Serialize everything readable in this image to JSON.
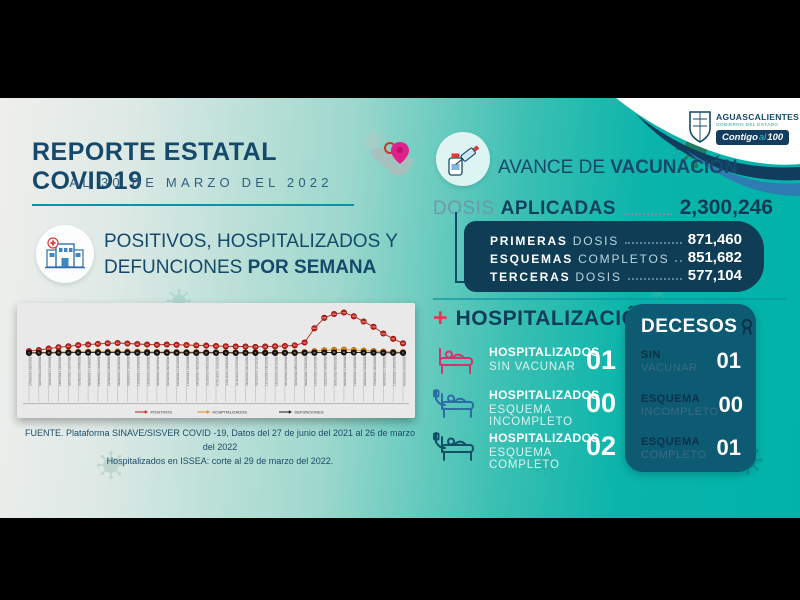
{
  "header": {
    "title": "REPORTE ESTATAL COVID19",
    "subtitle": "AL 30 DE MARZO DEL 2022"
  },
  "logo": {
    "state": "AGUASCALIENTES",
    "government": "GOBIERNO DEL ESTADO",
    "slogan_part1": "Contigo",
    "slogan_part2": "al",
    "slogan_part3": "100"
  },
  "left": {
    "section_title_line1": "POSITIVOS, HOSPITALIZADOS Y",
    "section_title_line2_regular": "DEFUNCIONES",
    "section_title_line2_bold": "POR SEMANA",
    "source_line1": "FUENTE. Plataforma SINAVE/SISVER COVID -19, Datos del 27 de junio del 2021 al 26 de marzo del 2022",
    "source_line2": "Hospitalizados en ISSEA: corte al 29 de marzo del 2022."
  },
  "vaccination": {
    "title_regular": "AVANCE DE",
    "title_bold": "VACUNACIÓN",
    "doses_label_regular": "DOSIS",
    "doses_label_bold": "APLICADAS",
    "doses_total": "2,300,246",
    "rows": [
      {
        "bold": "PRIMERAS",
        "rest": "DOSIS",
        "value": "871,460"
      },
      {
        "bold": "ESQUEMAS",
        "rest": "COMPLETOS",
        "value": "851,682"
      },
      {
        "bold": "TERCERAS",
        "rest": "DOSIS",
        "value": "577,104"
      }
    ]
  },
  "hospitalization": {
    "plus": "+",
    "title": "HOSPITALIZACIÓN",
    "rows": [
      {
        "line1": "HOSPITALIZADOS",
        "line2": "SIN VACUNAR",
        "value": "01"
      },
      {
        "line1": "HOSPITALIZADOS",
        "line2": "ESQUEMA INCOMPLETO",
        "value": "00"
      },
      {
        "line1": "HOSPITALIZADOS",
        "line2": "ESQUEMA COMPLETO",
        "value": "02"
      }
    ]
  },
  "deaths": {
    "title": "DECESOS",
    "rows": [
      {
        "line1": "SIN",
        "line2": "VACUNAR",
        "value": "01"
      },
      {
        "line1": "ESQUEMA",
        "line2": "INCOMPLETO",
        "value": "00"
      },
      {
        "line1": "ESQUEMA",
        "line2": "COMPLETO",
        "value": "01"
      }
    ]
  },
  "chart_data": {
    "type": "line",
    "title": "",
    "xlabel": "",
    "ylabel": "",
    "ylim": [
      0,
      2800
    ],
    "legend_position": "bottom",
    "x_tick_rotation": 90,
    "categories": [
      "27/06/2021-03/07/2021",
      "04/07/2021-10/07/2021",
      "11/07/2021-17/07/2021",
      "18/07/2021-24/07/2021",
      "25/07/2021-31/07/2021",
      "01/08/2021-07/08/2021",
      "08/08/2021-14/08/2021",
      "15/08/2021-21/08/2021",
      "22/08/2021-28/08/2021",
      "29/08/2021-04/09/2021",
      "05/09/2021-11/09/2021",
      "12/09/2021-18/09/2021",
      "19/09/2021-25/09/2021",
      "26/09/2021-02/10/2021",
      "03/10/2021-09/10/2021",
      "10/10/2021-16/10/2021",
      "17/10/2021-23/10/2021",
      "24/10/2021-30/10/2021",
      "31/10/2021-06/11/2021",
      "07/11/2021-13/11/2021",
      "14/11/2021-20/11/2021",
      "21/11/2021-27/11/2021",
      "28/11/2021-04/12/2021",
      "05/12/2021-11/12/2021",
      "12/12/2021-18/12/2021",
      "19/12/2021-25/12/2021",
      "26/12/2021-01/01/2022",
      "02/01/2022-08/01/2022",
      "09/01/2022-15/01/2022",
      "16/01/2022-22/01/2022",
      "23/01/2022-29/01/2022",
      "30/01/2022-05/02/2022",
      "06/02/2022-12/02/2022",
      "13/02/2022-19/02/2022",
      "20/02/2022-26/02/2022",
      "27/02/2022-05/03/2022",
      "06/03/2022-12/03/2022",
      "13/03/2022-19/03/2022",
      "20/03/2022-26/03/2022"
    ],
    "series": [
      {
        "name": "POSITIVOS",
        "color": "#c2241c",
        "stroke": "#7e120c",
        "values": [
          120,
          190,
          290,
          380,
          450,
          520,
          570,
          610,
          650,
          670,
          630,
          600,
          570,
          550,
          570,
          550,
          530,
          510,
          490,
          470,
          450,
          430,
          430,
          410,
          430,
          450,
          470,
          510,
          700,
          1650,
          2350,
          2600,
          2700,
          2450,
          2100,
          1750,
          1300,
          950,
          650
        ]
      },
      {
        "name": "HOSPITALIZADOS",
        "color": "#e08a1e",
        "stroke": "#a55f00",
        "values": [
          20,
          30,
          45,
          60,
          70,
          80,
          85,
          90,
          95,
          95,
          90,
          85,
          80,
          75,
          70,
          65,
          60,
          55,
          50,
          48,
          45,
          42,
          40,
          38,
          38,
          40,
          42,
          45,
          55,
          120,
          180,
          210,
          220,
          190,
          160,
          130,
          100,
          75,
          55
        ]
      },
      {
        "name": "DEFUNCIONES",
        "color": "#1a1a1a",
        "stroke": "#000000",
        "values": [
          5,
          8,
          12,
          16,
          20,
          24,
          26,
          28,
          28,
          27,
          25,
          23,
          21,
          19,
          18,
          16,
          15,
          14,
          13,
          12,
          11,
          10,
          10,
          9,
          9,
          9,
          10,
          10,
          12,
          20,
          30,
          38,
          40,
          34,
          28,
          22,
          16,
          11,
          8
        ]
      }
    ]
  },
  "colors": {
    "background_teal": "#00b3a9",
    "background_light": "#eef0ee",
    "navy_text": "#15496b",
    "panel_navy": "#0e3d55",
    "deaths_panel": "#0d5a73",
    "accent_rule": "#0095a8",
    "red_plus": "#e8384f",
    "wave_navy": "#123c5e",
    "wave_blue": "#2d7cb2",
    "pin_magenta": "#e0218a"
  }
}
